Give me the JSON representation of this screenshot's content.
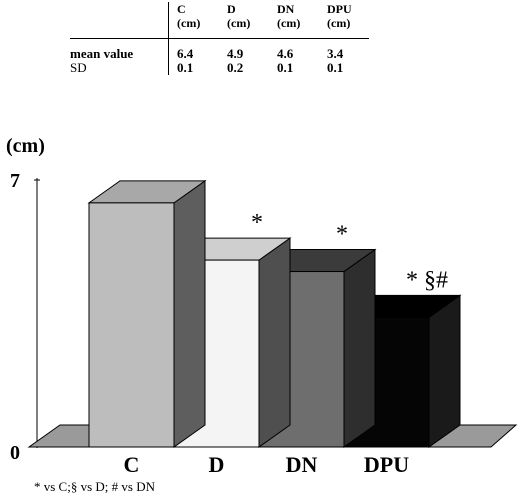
{
  "table": {
    "header": [
      {
        "symbol": "C",
        "unit": "(cm)"
      },
      {
        "symbol": "D",
        "unit": "(cm)"
      },
      {
        "symbol": "DN",
        "unit": "(cm)"
      },
      {
        "symbol": "DPU",
        "unit": "(cm)"
      }
    ],
    "rows": [
      {
        "label": "mean value",
        "values": [
          "6.4",
          "4.9",
          "4.6",
          "3.4"
        ]
      },
      {
        "label": "SD",
        "values": [
          "0.1",
          "0.2",
          "0.1",
          "0.1"
        ]
      }
    ]
  },
  "chart_data": {
    "type": "bar",
    "style": "3d",
    "categories": [
      "C",
      "D",
      "DN",
      "DPU"
    ],
    "values": [
      6.4,
      4.9,
      4.6,
      3.4
    ],
    "annotations": [
      "",
      "*",
      "*",
      "* §#"
    ],
    "ylabel": "(cm)",
    "ylim": [
      0,
      7
    ],
    "yticks": [
      "0",
      "7"
    ],
    "colors": {
      "C": {
        "front": "#bdbdbd",
        "top": "#a8a8a8",
        "side": "#5e5e5e"
      },
      "D": {
        "front": "#f4f4f4",
        "top": "#cfcfcf",
        "side": "#4f4f4f"
      },
      "DN": {
        "front": "#6e6e6e",
        "top": "#3b3b3b",
        "side": "#2e2e2e"
      },
      "DPU": {
        "front": "#050505",
        "top": "#000000",
        "side": "#1a1a1a"
      },
      "floor": "#9a9a9a"
    }
  },
  "footnote": "* vs C;§ vs D; # vs DN"
}
